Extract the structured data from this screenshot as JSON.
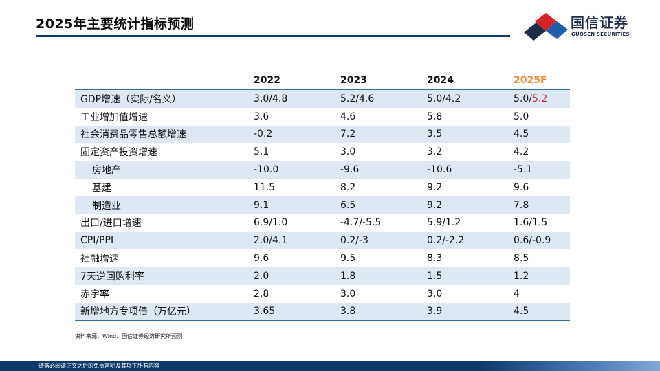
{
  "header": {
    "title": "2025年主要统计指标预测",
    "logo_cn": "国信证券",
    "logo_en": "GUOSEN SECURITIES"
  },
  "table": {
    "columns": [
      "",
      "2022",
      "2023",
      "2024",
      "2025F"
    ],
    "rows": [
      {
        "label": "GDP增速（实际/名义）",
        "v2022": "3.0/4.8",
        "v2023": "5.2/4.6",
        "v2024": "5.0/4.2",
        "v2025_prefix": "5.0/",
        "v2025_red": "5.2"
      },
      {
        "label": "工业增加值增速",
        "v2022": "3.6",
        "v2023": "4.6",
        "v2024": "5.8",
        "v2025": "5.0"
      },
      {
        "label": "社会消费品零售总额增速",
        "v2022": "-0.2",
        "v2023": "7.2",
        "v2024": "3.5",
        "v2025": "4.5"
      },
      {
        "label": "固定资产投资增速",
        "v2022": "5.1",
        "v2023": "3.0",
        "v2024": "3.2",
        "v2025": "4.2"
      },
      {
        "label": "房地产",
        "v2022": "-10.0",
        "v2023": "-9.6",
        "v2024": "-10.6",
        "v2025": "-5.1"
      },
      {
        "label": "基建",
        "v2022": "11.5",
        "v2023": "8.2",
        "v2024": "9.2",
        "v2025": "9.6"
      },
      {
        "label": "制造业",
        "v2022": "9.1",
        "v2023": "6.5",
        "v2024": "9.2",
        "v2025": "7.8"
      },
      {
        "label": "出口/进口增速",
        "v2022": "6.9/1.0",
        "v2023": "-4.7/-5.5",
        "v2024": "5.9/1.2",
        "v2025": "1.6/1.5"
      },
      {
        "label": "CPI/PPI",
        "v2022": "2.0/4.1",
        "v2023": "0.2/-3",
        "v2024": "0.2/-2.2",
        "v2025": "0.6/-0.9"
      },
      {
        "label": "社融增速",
        "v2022": "9.6",
        "v2023": "9.5",
        "v2024": "8.3",
        "v2025": "8.5"
      },
      {
        "label": "7天逆回购利率",
        "v2022": "2.0",
        "v2023": "1.8",
        "v2024": "1.5",
        "v2025": "1.2"
      },
      {
        "label": "赤字率",
        "v2022": "2.8",
        "v2023": "3.0",
        "v2024": "3.0",
        "v2025": "4"
      },
      {
        "label": "新增地方专项债（万亿元）",
        "v2022": "3.65",
        "v2023": "3.8",
        "v2024": "3.9",
        "v2025": "4.5"
      }
    ]
  },
  "source_note": "资料来源：Wind、国信证券经济研究所预测",
  "footer_text": "请务必阅读正文之后的免责声明及其项下所有内容",
  "colors": {
    "brand_navy": "#0b3a6b",
    "forecast_orange": "#ec8a2e",
    "highlight_red": "#d2232a",
    "row_shade": "#dde8f4"
  }
}
